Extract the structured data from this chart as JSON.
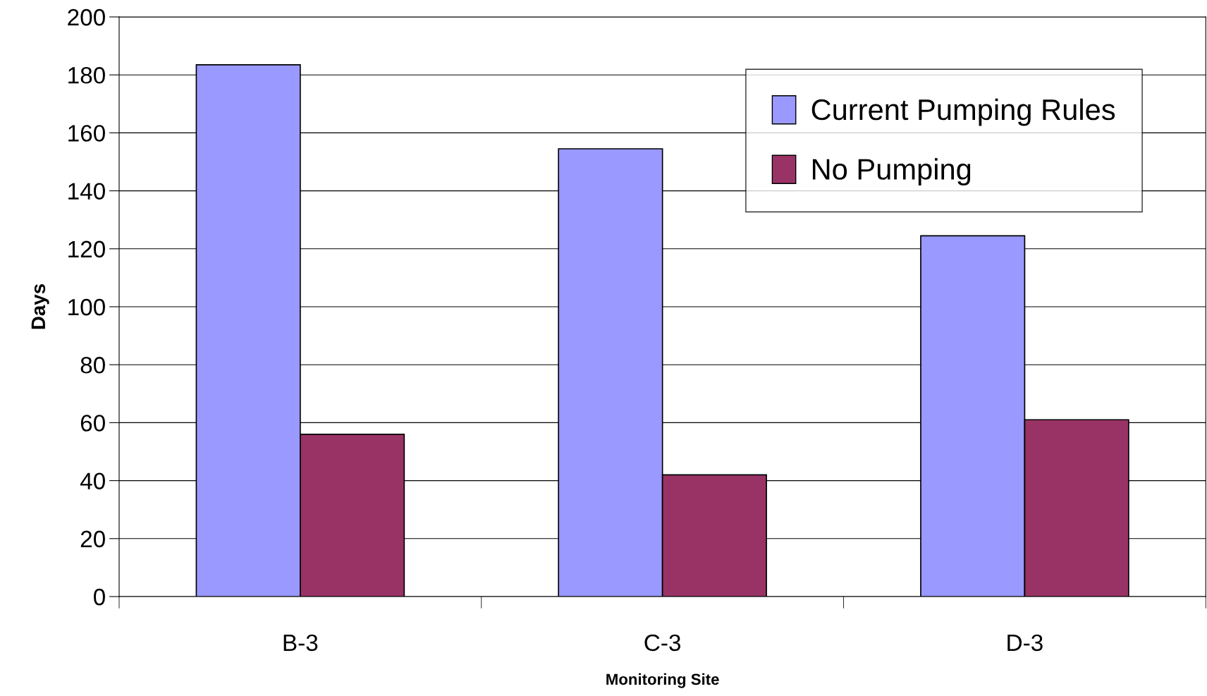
{
  "chart_data": {
    "type": "bar",
    "xlabel": "Monitoring Site",
    "ylabel": "Days",
    "categories": [
      "B-3",
      "C-3",
      "D-3"
    ],
    "series": [
      {
        "name": "Current Pumping Rules",
        "color": "#9999ff",
        "values": [
          183.5,
          154.5,
          124.5
        ]
      },
      {
        "name": "No Pumping",
        "color": "#993366",
        "values": [
          56,
          42,
          61
        ]
      }
    ],
    "ylim": [
      0,
      200
    ],
    "yticks": [
      0,
      20,
      40,
      60,
      80,
      100,
      120,
      140,
      160,
      180,
      200
    ],
    "grid": "y",
    "legend": "top right"
  }
}
